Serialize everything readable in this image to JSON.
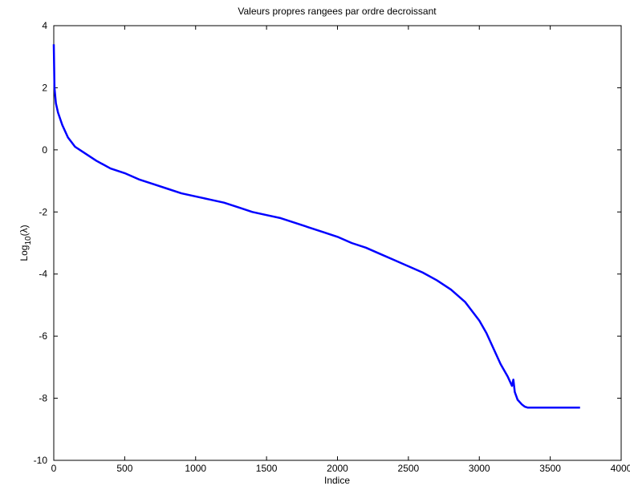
{
  "chart_data": {
    "type": "line",
    "title": "Valeurs propres rangees par ordre decroissant",
    "xlabel": "Indice",
    "ylabel": {
      "prefix": "Log",
      "subscript": "10",
      "suffix": "(λ)"
    },
    "xlim": [
      0,
      4000
    ],
    "ylim": [
      -10,
      4
    ],
    "xticks": [
      0,
      500,
      1000,
      1500,
      2000,
      2500,
      3000,
      3500,
      4000
    ],
    "yticks": [
      -10,
      -8,
      -6,
      -4,
      -2,
      0,
      2,
      4
    ],
    "grid": false,
    "line_color": "#0000ff",
    "series": [
      {
        "x": [
          0,
          5,
          15,
          30,
          60,
          100,
          150,
          200,
          300,
          400,
          500,
          600,
          700,
          800,
          900,
          1000,
          1100,
          1200,
          1300,
          1400,
          1500,
          1600,
          1700,
          1800,
          1900,
          2000,
          2100,
          2200,
          2300,
          2400,
          2500,
          2600,
          2700,
          2800,
          2900,
          3000,
          3050,
          3100,
          3150,
          3200,
          3220,
          3230,
          3240,
          3250,
          3270,
          3300,
          3320,
          3340,
          3360,
          3400,
          3500,
          3600,
          3710
        ],
        "y": [
          3.4,
          2.0,
          1.5,
          1.2,
          0.8,
          0.4,
          0.1,
          -0.05,
          -0.35,
          -0.6,
          -0.75,
          -0.95,
          -1.1,
          -1.25,
          -1.4,
          -1.5,
          -1.6,
          -1.7,
          -1.85,
          -2.0,
          -2.1,
          -2.2,
          -2.35,
          -2.5,
          -2.65,
          -2.8,
          -3.0,
          -3.15,
          -3.35,
          -3.55,
          -3.75,
          -3.95,
          -4.2,
          -4.5,
          -4.9,
          -5.5,
          -5.9,
          -6.4,
          -6.9,
          -7.3,
          -7.5,
          -7.6,
          -7.4,
          -7.8,
          -8.05,
          -8.2,
          -8.27,
          -8.3,
          -8.3,
          -8.3,
          -8.3,
          -8.3,
          -8.3
        ]
      }
    ]
  }
}
